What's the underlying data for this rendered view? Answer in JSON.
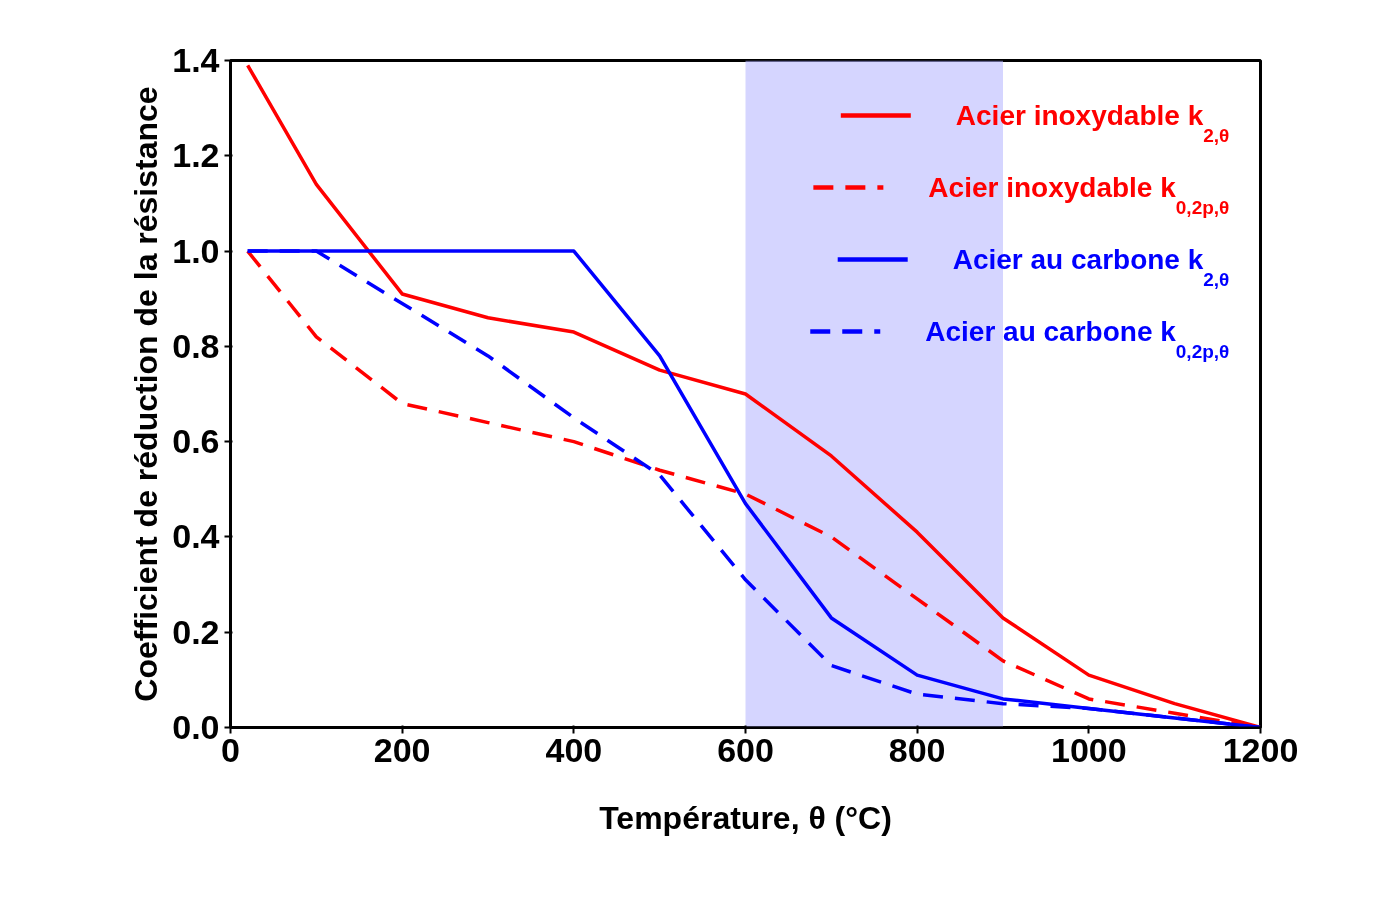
{
  "chart_data": {
    "type": "line",
    "xlabel": "Température, θ (°C)",
    "ylabel": "Coefficient de réduction de la résistance",
    "xlim": [
      0,
      1200
    ],
    "xticks": [
      0,
      200,
      400,
      600,
      800,
      1000,
      1200
    ],
    "ylim": [
      0,
      1.4
    ],
    "yticks": [
      {
        "value": 0,
        "label": "0.0"
      },
      0.2,
      0.4,
      0.6,
      0.8,
      {
        "value": 1,
        "label": "1.0"
      },
      1.2,
      1.4
    ],
    "grid": false,
    "legend": "top right",
    "x": [
      20,
      100,
      200,
      300,
      400,
      500,
      600,
      700,
      800,
      900,
      1000,
      1100,
      1200
    ],
    "series": [
      {
        "name": "Acier inoxydable k$_{2,θ}$",
        "color": "#ff0000",
        "line_style": "solid",
        "values": [
          1.39,
          1.14,
          0.91,
          0.86,
          0.83,
          0.75,
          0.7,
          0.57,
          0.41,
          0.23,
          0.11,
          0.05,
          0.0
        ]
      },
      {
        "name": "Acier inoxydable k$_{0,2p,θ}$",
        "color": "#ff0000",
        "line_style": "dashed",
        "values": [
          1.0,
          0.82,
          0.68,
          0.64,
          0.6,
          0.54,
          0.49,
          0.4,
          0.27,
          0.14,
          0.06,
          0.03,
          0.0
        ]
      },
      {
        "name": "Acier au carbone k$_{2,θ}$",
        "color": "#0000ff",
        "line_style": "solid",
        "values": [
          1.0,
          1.0,
          1.0,
          1.0,
          1.0,
          0.78,
          0.47,
          0.23,
          0.11,
          0.06,
          0.04,
          0.02,
          0.0
        ]
      },
      {
        "name": "Acier au carbone k$_{0,2p,θ}$",
        "color": "#0000ff",
        "line_style": "dashed",
        "values": [
          1.0,
          1.0,
          0.89,
          0.78,
          0.65,
          0.53,
          0.31,
          0.13,
          0.07,
          0.05,
          0.04,
          0.02,
          0.0
        ]
      }
    ],
    "bands": [
      {
        "axis": "x",
        "from": 600,
        "to": 900,
        "color": "#b3b3ff"
      }
    ]
  }
}
